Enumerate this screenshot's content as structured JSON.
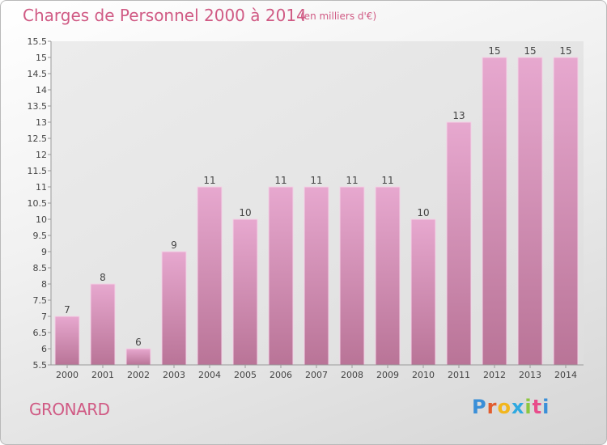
{
  "header": {
    "title": "Charges de Personnel 2000 à 2014",
    "unit": "(en milliers d'€)"
  },
  "footer": {
    "commune": "GRONARD",
    "logo_letters": [
      "P",
      "r",
      "o",
      "x",
      "i",
      "t",
      "i"
    ],
    "logo_colors": [
      "#3a8fd8",
      "#e25c2e",
      "#f2b61d",
      "#2fa9e0",
      "#8cc63f",
      "#e84c8b",
      "#3a8fd8"
    ]
  },
  "chart_data": {
    "type": "bar",
    "title": "Charges de Personnel 2000 à 2014",
    "subtitle": "(en milliers d'€)",
    "categories": [
      "2000",
      "2001",
      "2002",
      "2003",
      "2004",
      "2005",
      "2006",
      "2007",
      "2008",
      "2009",
      "2010",
      "2011",
      "2012",
      "2013",
      "2014"
    ],
    "values": [
      7,
      8,
      6,
      9,
      11,
      10,
      11,
      11,
      11,
      11,
      10,
      13,
      15,
      15,
      15
    ],
    "data_labels": [
      "7",
      "8",
      "6",
      "9",
      "11",
      "10",
      "11",
      "11",
      "11",
      "11",
      "10",
      "13",
      "15",
      "15",
      "15"
    ],
    "ylim": [
      5.5,
      15.5
    ],
    "yticks": [
      "5.5",
      "6",
      "6.5",
      "7",
      "7.5",
      "8",
      "8.5",
      "9",
      "9.5",
      "10",
      "10.5",
      "11",
      "11.5",
      "12",
      "12.5",
      "13",
      "13.5",
      "14",
      "14.5",
      "15",
      "15.5"
    ],
    "grid": false,
    "bar_color_top": "#e7a8cf",
    "bar_color_bottom": "#b97497"
  }
}
